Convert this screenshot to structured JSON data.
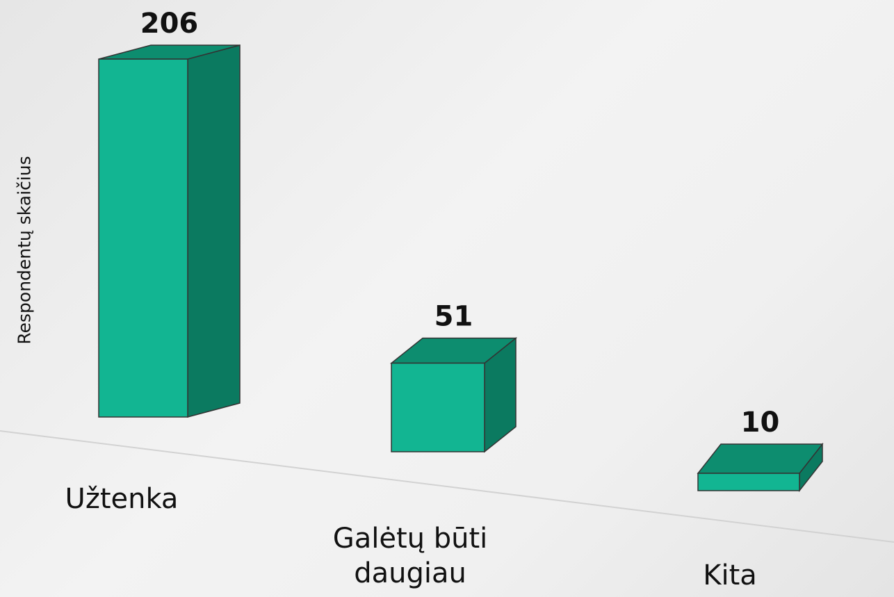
{
  "chart_data": {
    "type": "bar3d",
    "y_label": "Respondentų skaičius",
    "categories": [
      "Užtenka",
      "Galėtų būti daugiau",
      "Kita"
    ],
    "values": [
      206,
      51,
      10
    ],
    "colors": {
      "front": "#12b592",
      "side": "#0b7a60",
      "top": "#0d8d6f"
    }
  }
}
